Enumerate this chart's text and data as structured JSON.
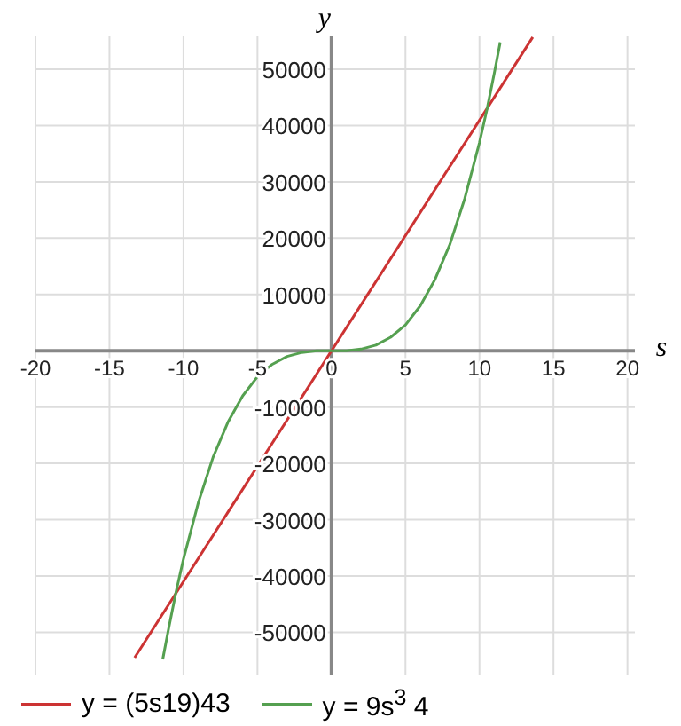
{
  "chart_data": {
    "type": "line",
    "xlabel": "s",
    "ylabel": "y",
    "xlim": [
      -20,
      20.5
    ],
    "ylim": [
      -57500,
      56000
    ],
    "xticks": [
      -20,
      -15,
      -10,
      -5,
      0,
      5,
      10,
      15,
      20
    ],
    "yticks": [
      -50000,
      -40000,
      -30000,
      -20000,
      -10000,
      10000,
      20000,
      30000,
      40000,
      50000
    ],
    "grid": true,
    "legend": "bottom",
    "marker": "none",
    "line_style": "solid",
    "series": [
      {
        "name": "y = (5s19)43",
        "color": "#cc3333",
        "x": [
          -13.3,
          13.6
        ],
        "values": [
          -54500,
          55700
        ]
      },
      {
        "name": "y = 9s$^{3}$ 4",
        "color": "#55a050",
        "x": [
          -11.4,
          -11,
          -10.5,
          -10,
          -9,
          -8,
          -7,
          -6,
          -5,
          -4,
          -3,
          -2,
          -1,
          0,
          1,
          2,
          3,
          4,
          5,
          6,
          7,
          8,
          9,
          10,
          10.5,
          11,
          11.4
        ],
        "values": [
          -54800,
          -49300,
          -42800,
          -37000,
          -27000,
          -18900,
          -12700,
          -8000,
          -4600,
          -2400,
          -1000,
          -300,
          0,
          0,
          0,
          300,
          1000,
          2400,
          4600,
          8000,
          12700,
          18900,
          27000,
          37000,
          42800,
          49300,
          54800
        ]
      }
    ]
  }
}
